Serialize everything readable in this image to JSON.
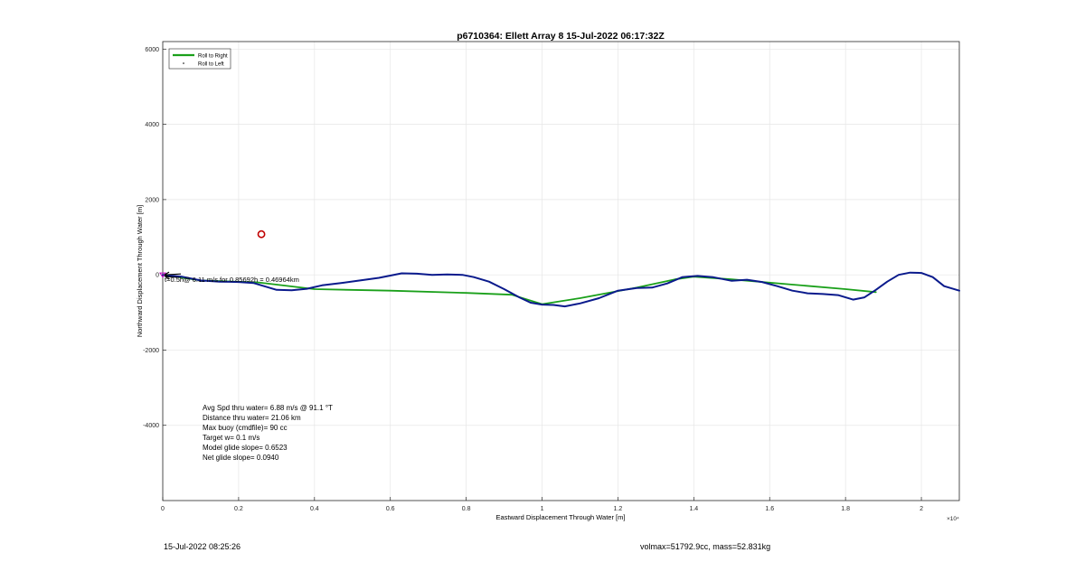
{
  "chart_data": {
    "type": "line",
    "title": "p6710364: Ellett Array 8 15-Jul-2022 06:17:32Z",
    "xlabel": "Eastward Displacement Through Water [m]",
    "ylabel": "Northward Displacement Through Water [m]",
    "x_exponent_label": "×10⁴",
    "xlim": [
      0,
      21000
    ],
    "ylim": [
      -6000,
      6200
    ],
    "x_ticks": [
      0,
      2000,
      4000,
      6000,
      8000,
      10000,
      12000,
      14000,
      16000,
      18000,
      20000
    ],
    "x_tick_labels": [
      "0",
      "0.2",
      "0.4",
      "0.6",
      "0.8",
      "1",
      "1.2",
      "1.4",
      "1.6",
      "1.8",
      "2"
    ],
    "y_ticks": [
      -4000,
      -2000,
      0,
      2000,
      4000,
      6000
    ],
    "y_tick_labels": [
      "-4000",
      "-2000",
      "0",
      "2000",
      "4000",
      "6000"
    ],
    "grid": true,
    "legend_position": "top-left",
    "series": [
      {
        "name": "Roll to Right",
        "color": "#1aa01a",
        "x": [
          0,
          1000,
          2500,
          4000,
          6000,
          8000,
          9200,
          10000,
          11000,
          12500,
          13500,
          14000,
          15000,
          16500,
          18000,
          18800
        ],
        "y": [
          0,
          -150,
          -200,
          -380,
          -420,
          -480,
          -530,
          -780,
          -620,
          -340,
          -120,
          -50,
          -120,
          -250,
          -380,
          -460
        ]
      },
      {
        "name": "Roll to Left",
        "color": "#000000",
        "x": [],
        "y": []
      },
      {
        "name": "",
        "color": "#0a1a8c",
        "x": [
          0,
          500,
          1000,
          1500,
          2000,
          2400,
          2800,
          3000,
          3400,
          3800,
          4200,
          4700,
          5200,
          5700,
          6000,
          6300,
          6700,
          7100,
          7500,
          7900,
          8200,
          8600,
          9000,
          9400,
          9700,
          10000,
          10300,
          10600,
          11000,
          11500,
          12000,
          12500,
          12900,
          13300,
          13700,
          14100,
          14500,
          15000,
          15400,
          15800,
          16200,
          16600,
          17000,
          17400,
          17800,
          18200,
          18500,
          18800,
          19100,
          19400,
          19700,
          20000,
          20300,
          20600,
          21000
        ],
        "y": [
          0,
          -50,
          -150,
          -180,
          -190,
          -220,
          -340,
          -400,
          -410,
          -370,
          -280,
          -220,
          -150,
          -80,
          -20,
          40,
          30,
          0,
          10,
          0,
          -60,
          -180,
          -380,
          -600,
          -740,
          -790,
          -800,
          -840,
          -760,
          -620,
          -420,
          -350,
          -340,
          -230,
          -60,
          -30,
          -60,
          -160,
          -130,
          -190,
          -300,
          -420,
          -490,
          -510,
          -540,
          -660,
          -600,
          -400,
          -180,
          0,
          60,
          50,
          -60,
          -300,
          -420
        ]
      }
    ],
    "markers": [
      {
        "type": "circle",
        "color": "#c00000",
        "x": 2600,
        "y": 1080
      },
      {
        "type": "triangle",
        "color": "#c000c0",
        "x": 0,
        "y": 0
      }
    ],
    "annotations": [
      {
        "text": "t=0.5h@ 6.11 m/s for 0.85692h  = 0.46964km",
        "x": 0,
        "y": 0
      }
    ],
    "stats": [
      "Avg Spd thru water=  6.88 m/s @  91.1 °T",
      "Distance thru water= 21.06 km",
      "Max buoy (cmdfile)= 90 cc",
      "Target w= 0.1 m/s",
      "Model glide slope= 0.6523",
      "Net glide slope= 0.0940"
    ]
  },
  "footer": {
    "timestamp": "15-Jul-2022 08:25:26",
    "volume_mass": "volmax=51792.9cc, mass=52.831kg"
  }
}
